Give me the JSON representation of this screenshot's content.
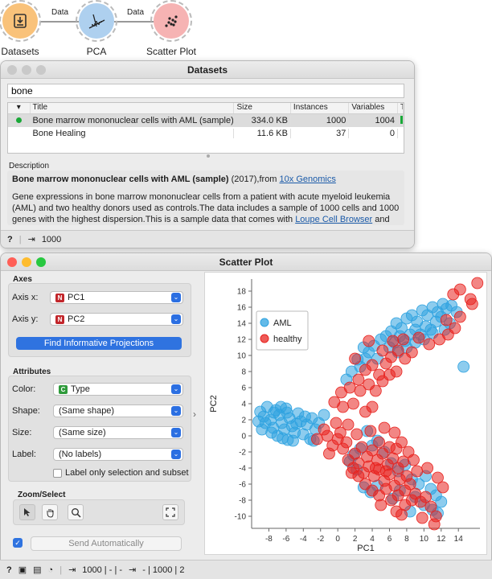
{
  "workflow": {
    "nodes": [
      {
        "label": "Datasets",
        "icon": "datasets-icon"
      },
      {
        "label": "PCA",
        "icon": "pca-icon"
      },
      {
        "label": "Scatter Plot",
        "icon": "scatter-plot-icon"
      }
    ],
    "links": [
      {
        "label": "Data"
      },
      {
        "label": "Data"
      }
    ]
  },
  "datasets": {
    "title": "Datasets",
    "filter_value": "bone",
    "columns": [
      "",
      "Title",
      "Size",
      "Instances",
      "Variables",
      "T"
    ],
    "rows": [
      {
        "title": "Bone marrow mononuclear cells with AML (sample)",
        "size": "334.0 KB",
        "instances": "1000",
        "variables": "1004",
        "status": "downloaded"
      },
      {
        "title": "Bone Healing",
        "size": "11.6 KB",
        "instances": "37",
        "variables": "0",
        "status": ""
      }
    ],
    "description_label": "Description",
    "description": {
      "title": "Bone marrow mononuclear cells with AML (sample)",
      "year_from": " (2017),from ",
      "source": "10x Genomics",
      "body1": "Gene expressions in bone marrow mononuclear cells from a patient with acute myeloid leukemia (AML) and two healthy donors used as controls.The data includes a sample of 1000 cells and 1000 genes with the highest dispersion.This is a sample data that comes with ",
      "link2": "Loupe Cell Browser",
      "body2": " and"
    },
    "status_output": "1000"
  },
  "scatter": {
    "title": "Scatter Plot",
    "axes_label": "Axes",
    "axis_x_label": "Axis x:",
    "axis_x_value": "PC1",
    "axis_y_label": "Axis y:",
    "axis_y_value": "PC2",
    "find_button": "Find Informative Projections",
    "attributes_label": "Attributes",
    "color_label": "Color:",
    "color_value": "Type",
    "shape_label": "Shape:",
    "shape_value": "(Same shape)",
    "size_label": "Size:",
    "size_value": "(Same size)",
    "label_label": "Label:",
    "label_value": "(No labels)",
    "label_only_text": "Label only selection and subset",
    "zoom_label": "Zoom/Select",
    "send_button": "Send Automatically",
    "status_input": "1000 | - | -",
    "status_output": "- | 1000 | 2",
    "colors": {
      "aml": "#2fa3e0",
      "healthy": "#e8231f"
    }
  },
  "chart_data": {
    "type": "scatter",
    "title": "",
    "xlabel": "PC1",
    "ylabel": "PC2",
    "xlim": [
      -10,
      16.5
    ],
    "ylim": [
      -11.5,
      19.5
    ],
    "xticks": [
      -8,
      -6,
      -4,
      -2,
      0,
      2,
      4,
      6,
      8,
      10,
      12,
      14
    ],
    "yticks": [
      -10,
      -8,
      -6,
      -4,
      -2,
      0,
      2,
      4,
      6,
      8,
      10,
      12,
      14,
      16,
      18
    ],
    "legend": [
      "AML",
      "healthy"
    ],
    "legend_position": "top-left",
    "series": [
      {
        "name": "AML",
        "color": "#2fa3e0",
        "points": [
          [
            -9,
            3
          ],
          [
            -8.6,
            2.4
          ],
          [
            -8.2,
            3.6
          ],
          [
            -7.8,
            2
          ],
          [
            -7.5,
            1
          ],
          [
            -7.2,
            3.2
          ],
          [
            -6.8,
            2.6
          ],
          [
            -6.5,
            1.6
          ],
          [
            -6.2,
            0.8
          ],
          [
            -6,
            3.4
          ],
          [
            -5.6,
            2.2
          ],
          [
            -5.3,
            1.2
          ],
          [
            -5,
            0.4
          ],
          [
            -4.6,
            2.8
          ],
          [
            -4.3,
            1.8
          ],
          [
            -4,
            0.2
          ],
          [
            -3.6,
            1.4
          ],
          [
            -3.2,
            -0.4
          ],
          [
            -3,
            2.2
          ],
          [
            -2.6,
            0.8
          ],
          [
            -8.4,
            1.6
          ],
          [
            -7.7,
            0.4
          ],
          [
            -7,
            0
          ],
          [
            -6.4,
            -0.3
          ],
          [
            -5.8,
            -0.5
          ],
          [
            -5.2,
            -0.6
          ],
          [
            -8.8,
            0.8
          ],
          [
            -9.2,
            1.8
          ],
          [
            -7.4,
            2.9
          ],
          [
            -6.6,
            3.6
          ],
          [
            -5.9,
            2.9
          ],
          [
            -4.8,
            1.5
          ],
          [
            -2.2,
            1.6
          ],
          [
            -1.6,
            2.6
          ],
          [
            -3.8,
            2.4
          ],
          [
            -2.8,
            -0.6
          ],
          [
            1,
            7
          ],
          [
            1.6,
            8
          ],
          [
            2.3,
            9.5
          ],
          [
            3,
            11
          ],
          [
            3.6,
            10.4
          ],
          [
            4.2,
            11.2
          ],
          [
            2.6,
            8.6
          ],
          [
            3.2,
            9.6
          ],
          [
            4.6,
            9.6
          ],
          [
            5.6,
            12.4
          ],
          [
            6.2,
            13
          ],
          [
            6.8,
            14
          ],
          [
            7.4,
            13.4
          ],
          [
            8,
            14.6
          ],
          [
            8.6,
            15
          ],
          [
            9.2,
            14.2
          ],
          [
            9.8,
            15.6
          ],
          [
            10.4,
            15
          ],
          [
            11,
            16
          ],
          [
            11.6,
            15.4
          ],
          [
            12.2,
            16.4
          ],
          [
            6.6,
            11.6
          ],
          [
            7.2,
            12.4
          ],
          [
            7.8,
            11.8
          ],
          [
            8.4,
            12.6
          ],
          [
            9,
            13.2
          ],
          [
            9.6,
            12.6
          ],
          [
            10.2,
            13.6
          ],
          [
            10.8,
            13.2
          ],
          [
            11.4,
            14.2
          ],
          [
            12,
            14.8
          ],
          [
            12.6,
            15.8
          ],
          [
            13.2,
            16.2
          ],
          [
            13.8,
            15.4
          ],
          [
            14.6,
            8.6
          ],
          [
            5,
            12
          ],
          [
            6,
            11
          ],
          [
            7,
            10.4
          ],
          [
            8,
            11
          ],
          [
            9,
            11.6
          ],
          [
            10,
            12
          ],
          [
            11,
            12.8
          ],
          [
            12.4,
            13.2
          ],
          [
            13,
            14
          ],
          [
            1.8,
            -2.4
          ],
          [
            2.6,
            -1.6
          ],
          [
            3.4,
            0.6
          ],
          [
            4,
            -1.2
          ],
          [
            4.6,
            -0.6
          ],
          [
            5.4,
            -2
          ],
          [
            6.2,
            -3.4
          ],
          [
            7,
            -4.4
          ],
          [
            7.8,
            -3.6
          ],
          [
            8.6,
            -5.4
          ],
          [
            9.4,
            -6
          ],
          [
            10.2,
            -5
          ],
          [
            10.8,
            -6.6
          ],
          [
            11.4,
            -7.4
          ],
          [
            12,
            -8.2
          ],
          [
            9,
            -7.6
          ],
          [
            10,
            -8.6
          ],
          [
            11,
            -9.2
          ],
          [
            8.4,
            -9.4
          ],
          [
            11.6,
            -9.6
          ],
          [
            3,
            -6.4
          ],
          [
            3.8,
            -7
          ],
          [
            4.6,
            -6.2
          ],
          [
            6.4,
            -7.8
          ],
          [
            7.2,
            -6.8
          ],
          [
            2.2,
            -4.2
          ],
          [
            1.4,
            -3.2
          ]
        ]
      },
      {
        "name": "healthy",
        "color": "#e8231f",
        "points": [
          [
            -2.4,
            -0.4
          ],
          [
            -1.2,
            0
          ],
          [
            -0.6,
            -1.2
          ],
          [
            0,
            -0.4
          ],
          [
            0.6,
            -1.6
          ],
          [
            -1.6,
            0.8
          ],
          [
            -0.2,
            1.6
          ],
          [
            1,
            -0.8
          ],
          [
            0.3,
            0.4
          ],
          [
            -1,
            -2.2
          ],
          [
            1.2,
            -3
          ],
          [
            1.8,
            -4
          ],
          [
            2.4,
            -3.4
          ],
          [
            3,
            -4.6
          ],
          [
            3.6,
            -3.8
          ],
          [
            4.2,
            -5
          ],
          [
            4.8,
            -4.2
          ],
          [
            5.4,
            -5.6
          ],
          [
            6,
            -4.8
          ],
          [
            6.6,
            -6.2
          ],
          [
            7.2,
            -5.4
          ],
          [
            7.8,
            -6.8
          ],
          [
            8.4,
            -6
          ],
          [
            9,
            -7.2
          ],
          [
            9.6,
            -8.2
          ],
          [
            10.2,
            -7.6
          ],
          [
            10.8,
            -8.8
          ],
          [
            11.4,
            -10
          ],
          [
            11.2,
            -11
          ],
          [
            9.8,
            -10.2
          ],
          [
            2,
            -2.2
          ],
          [
            2.8,
            -1.4
          ],
          [
            3.4,
            -2.6
          ],
          [
            4,
            -1.8
          ],
          [
            4.6,
            -3
          ],
          [
            5.2,
            -2.2
          ],
          [
            5.8,
            -3.6
          ],
          [
            6.4,
            -2.8
          ],
          [
            7,
            -4
          ],
          [
            7.6,
            -3.2
          ],
          [
            3.2,
            -6
          ],
          [
            4,
            -6.8
          ],
          [
            4.8,
            -7.4
          ],
          [
            5.6,
            -6.6
          ],
          [
            6.2,
            -8
          ],
          [
            7,
            -7.4
          ],
          [
            7.8,
            -8.6
          ],
          [
            8.6,
            -8
          ],
          [
            5,
            -8.6
          ],
          [
            6.8,
            -9.4
          ],
          [
            2.4,
            -5
          ],
          [
            1.6,
            -4.6
          ],
          [
            4.4,
            -4
          ],
          [
            5.6,
            -4.4
          ],
          [
            8,
            -5
          ],
          [
            9.2,
            -4.4
          ],
          [
            6,
            -1.4
          ],
          [
            4.8,
            -0.8
          ],
          [
            3.8,
            0.6
          ],
          [
            5.4,
            1
          ],
          [
            6.6,
            0.4
          ],
          [
            7.4,
            -0.8
          ],
          [
            8.2,
            -2
          ],
          [
            2.2,
            0.2
          ],
          [
            1.2,
            1.4
          ],
          [
            0.6,
            3.6
          ],
          [
            1.8,
            4
          ],
          [
            2.6,
            5.6
          ],
          [
            3.2,
            3
          ],
          [
            4,
            3.6
          ],
          [
            1.4,
            6
          ],
          [
            2.4,
            7
          ],
          [
            3.2,
            8.2
          ],
          [
            4,
            8.8
          ],
          [
            4.8,
            7.6
          ],
          [
            5.6,
            9
          ],
          [
            6.2,
            9.8
          ],
          [
            7,
            10.6
          ],
          [
            7.8,
            9.6
          ],
          [
            8.6,
            10.4
          ],
          [
            3.6,
            6.4
          ],
          [
            4.4,
            5.6
          ],
          [
            5.2,
            6.8
          ],
          [
            6,
            7.6
          ],
          [
            6.8,
            8
          ],
          [
            0.4,
            5.4
          ],
          [
            -0.4,
            4.2
          ],
          [
            2,
            9.6
          ],
          [
            3.6,
            11.8
          ],
          [
            5.2,
            10.6
          ],
          [
            6.4,
            11.8
          ],
          [
            7.6,
            12
          ],
          [
            9.4,
            12.2
          ],
          [
            10.6,
            11.4
          ],
          [
            11.8,
            12
          ],
          [
            12.8,
            12.6
          ],
          [
            13.6,
            13.4
          ],
          [
            14.2,
            14.8
          ],
          [
            15.6,
            16.4
          ],
          [
            16.2,
            19
          ],
          [
            15.4,
            17
          ],
          [
            14.2,
            18.2
          ],
          [
            13.4,
            17.6
          ],
          [
            12.6,
            14.4
          ],
          [
            6.8,
            -1.6
          ],
          [
            8.8,
            -3
          ],
          [
            10.4,
            -4
          ],
          [
            11.6,
            -5.2
          ],
          [
            12.2,
            -6.4
          ],
          [
            7.4,
            -9.8
          ]
        ]
      }
    ]
  }
}
